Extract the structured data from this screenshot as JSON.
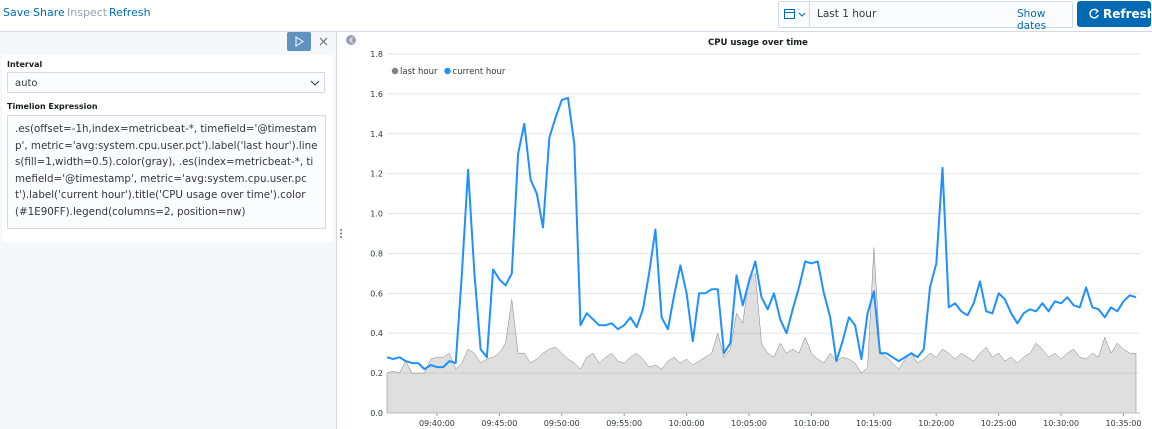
{
  "ui": {
    "menu": [
      "Save",
      "Share",
      "Inspect",
      "Refresh"
    ],
    "time_range": "Last 1 hour",
    "show_dates": "Show dates",
    "refresh_button": "Refresh",
    "interval_label": "Interval",
    "interval_value": "auto",
    "expression_label": "Timelion Expression",
    "expression": ".es(offset=-1h,index=metricbeat-*, timefield='@timestamp', metric='avg:system.cpu.user.pct').label('last hour').lines(fill=1,width=0.5).color(gray), .es(index=metricbeat-*, timefield='@timestamp', metric='avg:system.cpu.user.pct').label('current hour').title('CPU usage over time').color(#1E90FF).legend(columns=2, position=nw)"
  },
  "chart_data": {
    "type": "line",
    "title": "CPU usage over time",
    "x": [
      "09:36:00",
      "09:36:30",
      "09:37:00",
      "09:37:30",
      "09:38:00",
      "09:38:30",
      "09:39:00",
      "09:39:30",
      "09:40:00",
      "09:40:30",
      "09:41:00",
      "09:41:30",
      "09:42:00",
      "09:42:30",
      "09:43:00",
      "09:43:30",
      "09:44:00",
      "09:44:30",
      "09:45:00",
      "09:45:30",
      "09:46:00",
      "09:46:30",
      "09:47:00",
      "09:47:30",
      "09:48:00",
      "09:48:30",
      "09:49:00",
      "09:49:30",
      "09:50:00",
      "09:50:30",
      "09:51:00",
      "09:51:30",
      "09:52:00",
      "09:52:30",
      "09:53:00",
      "09:53:30",
      "09:54:00",
      "09:54:30",
      "09:55:00",
      "09:55:30",
      "09:56:00",
      "09:56:30",
      "09:57:00",
      "09:57:30",
      "09:58:00",
      "09:58:30",
      "09:59:00",
      "09:59:30",
      "10:00:00",
      "10:00:30",
      "10:01:00",
      "10:01:30",
      "10:02:00",
      "10:02:30",
      "10:03:00",
      "10:03:30",
      "10:04:00",
      "10:04:30",
      "10:05:00",
      "10:05:30",
      "10:06:00",
      "10:06:30",
      "10:07:00",
      "10:07:30",
      "10:08:00",
      "10:08:30",
      "10:09:00",
      "10:09:30",
      "10:10:00",
      "10:10:30",
      "10:11:00",
      "10:11:30",
      "10:12:00",
      "10:12:30",
      "10:13:00",
      "10:13:30",
      "10:14:00",
      "10:14:30",
      "10:15:00",
      "10:15:30",
      "10:16:00",
      "10:16:30",
      "10:17:00",
      "10:17:30",
      "10:18:00",
      "10:18:30",
      "10:19:00",
      "10:19:30",
      "10:20:00",
      "10:20:30",
      "10:21:00",
      "10:21:30",
      "10:22:00",
      "10:22:30",
      "10:23:00",
      "10:23:30",
      "10:24:00",
      "10:24:30",
      "10:25:00",
      "10:25:30",
      "10:26:00",
      "10:26:30",
      "10:27:00",
      "10:27:30",
      "10:28:00",
      "10:28:30",
      "10:29:00",
      "10:29:30",
      "10:30:00",
      "10:30:30",
      "10:31:00",
      "10:31:30",
      "10:32:00",
      "10:32:30",
      "10:33:00",
      "10:33:30",
      "10:34:00",
      "10:34:30",
      "10:35:00",
      "10:35:30",
      "10:36:00"
    ],
    "series": [
      {
        "name": "last hour",
        "color": "#808080",
        "fill": true,
        "values": [
          0.2,
          0.21,
          0.2,
          0.26,
          0.2,
          0.2,
          0.2,
          0.27,
          0.28,
          0.28,
          0.3,
          0.22,
          0.25,
          0.32,
          0.3,
          0.25,
          0.27,
          0.28,
          0.3,
          0.35,
          0.57,
          0.3,
          0.3,
          0.25,
          0.27,
          0.3,
          0.32,
          0.33,
          0.3,
          0.27,
          0.25,
          0.22,
          0.28,
          0.3,
          0.25,
          0.28,
          0.3,
          0.26,
          0.25,
          0.28,
          0.3,
          0.27,
          0.23,
          0.24,
          0.22,
          0.26,
          0.28,
          0.25,
          0.27,
          0.24,
          0.26,
          0.28,
          0.3,
          0.4,
          0.28,
          0.32,
          0.5,
          0.45,
          0.68,
          0.7,
          0.35,
          0.3,
          0.28,
          0.35,
          0.3,
          0.32,
          0.3,
          0.38,
          0.3,
          0.27,
          0.25,
          0.3,
          0.26,
          0.28,
          0.27,
          0.25,
          0.2,
          0.23,
          0.83,
          0.3,
          0.28,
          0.25,
          0.22,
          0.27,
          0.3,
          0.25,
          0.27,
          0.3,
          0.28,
          0.32,
          0.3,
          0.27,
          0.3,
          0.28,
          0.26,
          0.3,
          0.33,
          0.28,
          0.3,
          0.26,
          0.28,
          0.25,
          0.28,
          0.3,
          0.35,
          0.32,
          0.28,
          0.3,
          0.27,
          0.3,
          0.32,
          0.28,
          0.27,
          0.3,
          0.28,
          0.38,
          0.3,
          0.35,
          0.32,
          0.3,
          0.3
        ]
      },
      {
        "name": "current hour",
        "color": "#1E90FF",
        "fill": false,
        "values": [
          0.28,
          0.27,
          0.28,
          0.26,
          0.25,
          0.25,
          0.22,
          0.24,
          0.23,
          0.23,
          0.26,
          0.25,
          0.7,
          1.22,
          0.7,
          0.32,
          0.28,
          0.72,
          0.67,
          0.64,
          0.7,
          1.3,
          1.45,
          1.17,
          1.1,
          0.93,
          1.38,
          1.48,
          1.57,
          1.58,
          1.35,
          0.44,
          0.5,
          0.47,
          0.44,
          0.44,
          0.45,
          0.42,
          0.44,
          0.48,
          0.43,
          0.52,
          0.7,
          0.92,
          0.48,
          0.42,
          0.59,
          0.74,
          0.6,
          0.36,
          0.6,
          0.6,
          0.62,
          0.62,
          0.3,
          0.35,
          0.69,
          0.54,
          0.66,
          0.76,
          0.58,
          0.52,
          0.6,
          0.47,
          0.4,
          0.52,
          0.63,
          0.76,
          0.75,
          0.76,
          0.6,
          0.48,
          0.26,
          0.36,
          0.48,
          0.44,
          0.27,
          0.5,
          0.61,
          0.3,
          0.3,
          0.28,
          0.26,
          0.28,
          0.3,
          0.28,
          0.32,
          0.63,
          0.75,
          1.23,
          0.53,
          0.55,
          0.51,
          0.49,
          0.55,
          0.66,
          0.51,
          0.5,
          0.6,
          0.57,
          0.5,
          0.45,
          0.5,
          0.52,
          0.51,
          0.55,
          0.51,
          0.56,
          0.55,
          0.58,
          0.54,
          0.53,
          0.63,
          0.53,
          0.52,
          0.48,
          0.53,
          0.51,
          0.56,
          0.59,
          0.58
        ]
      }
    ],
    "xlim": [
      "09:36:00",
      "10:36:00"
    ],
    "xticks": [
      "09:40:00",
      "09:45:00",
      "09:50:00",
      "09:55:00",
      "10:00:00",
      "10:05:00",
      "10:10:00",
      "10:15:00",
      "10:20:00",
      "10:25:00",
      "10:30:00",
      "10:35:00"
    ],
    "ylim": [
      0,
      1.8
    ],
    "yticks": [
      {
        "value": 0,
        "label": "0.0"
      },
      0.2,
      0.4,
      0.6,
      0.8,
      {
        "value": 1,
        "label": "1.0"
      },
      1.2,
      1.4,
      1.6,
      1.8
    ],
    "grid": true,
    "legend": "nw"
  }
}
